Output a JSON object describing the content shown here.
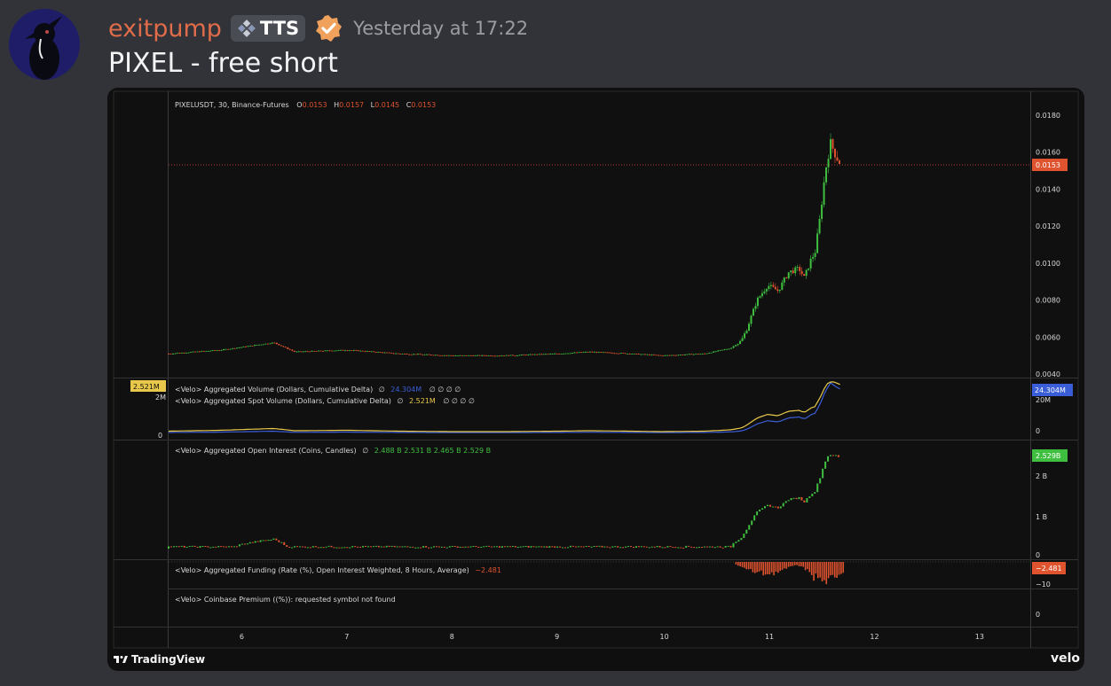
{
  "message": {
    "username": "exitpump",
    "tag": "TTS",
    "timestamp": "Yesterday at 17:22",
    "text": "PIXEL - free short",
    "avatar_icon": "crow-avatar-icon",
    "tag_icon": "diamond-grid-icon",
    "badge_icon": "verified-check-icon",
    "colors": {
      "username": "#e06c4a",
      "badge": "#f0a15c",
      "background": "#313338"
    }
  },
  "chart": {
    "symbol_line": {
      "symbol": "PIXELUSDT, 30, Binance-Futures",
      "o_label": "O",
      "o_value": "0.0153",
      "h_label": "H",
      "h_value": "0.0157",
      "l_label": "L",
      "l_value": "0.0145",
      "c_label": "C",
      "c_value": "0.0153"
    },
    "price_badge": "0.0153",
    "volume_badge": "24.304M",
    "spot_badge": "2.521M",
    "left_labels": {
      "scale_2m": "2M",
      "scale_0": "0"
    },
    "oi_badge": "2.529B",
    "funding_badge": "−2.481",
    "indicators": {
      "vol_title": "<Velo> Aggregated Volume (Dollars, Cumulative Delta)",
      "vol_values": "24.304M",
      "vol_tail": "∅  ∅  ∅  ∅",
      "spot_title": "<Velo> Aggregated Spot Volume (Dollars, Cumulative Delta)",
      "spot_values": "2.521M",
      "spot_tail": "∅  ∅  ∅  ∅",
      "oi_title": "<Velo> Aggregated Open Interest (Coins, Candles)",
      "oi_values": "2.488 B   2.531 B   2.465 B   2.529 B",
      "funding_title": "<Velo> Aggregated Funding (Rate (%), Open Interest Weighted, 8 Hours, Average)",
      "funding_value": "−2.481",
      "premium_title": "<Velo> Coinbase Premium ((%)): requested symbol not found",
      "null_sym": "∅"
    },
    "vol_axis": [
      "20M",
      "0"
    ],
    "oi_axis": [
      "2 B",
      "1 B",
      "0"
    ],
    "funding_axis": [
      "−10"
    ],
    "premium_axis": [
      "0"
    ],
    "footer": {
      "left": "TradingView",
      "right": "velo"
    },
    "colors": {
      "up": "#3fbf3f",
      "down": "#e0532f",
      "volume": "#3a5ed8",
      "spot": "#e8c84a",
      "price_badge": "#e0532f",
      "volume_badge": "#3a5ed8",
      "oi_badge": "#3fbf3f"
    }
  },
  "chart_data": {
    "type": "line",
    "title": "PIXELUSDT, 30, Binance-Futures",
    "x_ticks": [
      "6",
      "7",
      "8",
      "9",
      "10",
      "11",
      "12",
      "13"
    ],
    "y_ticks": [
      "0.0180",
      "0.0160",
      "0.0140",
      "0.0120",
      "0.0100",
      "0.0080",
      "0.0060",
      "0.0040"
    ],
    "ylim": [
      0.004,
      0.019
    ],
    "xlim": [
      5.3,
      13.5
    ],
    "series": [
      {
        "values_x": [
          5.3,
          5.8,
          6.3,
          6.5,
          7.0,
          7.5,
          8.0,
          8.5,
          9.0,
          9.3,
          9.7,
          10.0,
          10.4,
          10.65,
          10.75,
          10.8,
          10.9,
          11.0,
          11.1,
          11.2,
          11.3,
          11.35,
          11.42,
          11.45,
          11.5,
          11.55,
          11.6,
          11.65,
          11.7
        ],
        "values_y": [
          0.0051,
          0.0053,
          0.0057,
          0.0052,
          0.0053,
          0.0051,
          0.005,
          0.005,
          0.0051,
          0.0052,
          0.0051,
          0.005,
          0.0051,
          0.0054,
          0.0058,
          0.0064,
          0.008,
          0.0088,
          0.0085,
          0.0095,
          0.0097,
          0.0092,
          0.0103,
          0.0105,
          0.0125,
          0.015,
          0.0165,
          0.0158,
          0.0153
        ]
      }
    ]
  }
}
